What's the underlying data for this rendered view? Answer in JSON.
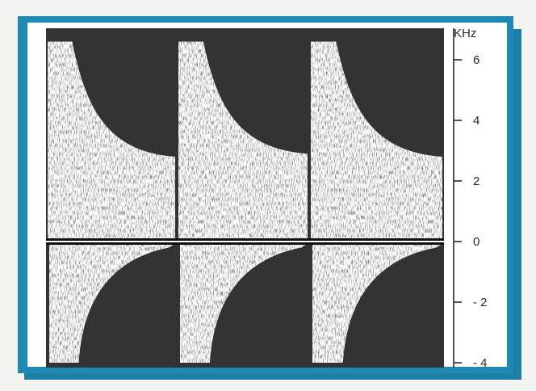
{
  "chart_data": {
    "type": "heatmap",
    "title": "",
    "xlabel": "",
    "ylabel": "KHz",
    "y_unit": "KHz",
    "ylim": [
      -4,
      6.6
    ],
    "y_ticks": [
      6,
      4,
      2,
      0,
      -2,
      -4
    ],
    "y_tick_labels": [
      "6",
      "4",
      "2",
      "0",
      "- 2",
      "- 4"
    ],
    "x_ticks": [],
    "grid": false,
    "legend": "none",
    "baseline_khz": 0,
    "cycles": [
      {
        "index": 1,
        "forward_peak_khz": 6.6,
        "forward_end_khz": 2.8,
        "reverse_peak_khz": -4.0,
        "reverse_end_khz": -0.2
      },
      {
        "index": 2,
        "forward_peak_khz": 6.6,
        "forward_end_khz": 2.9,
        "reverse_peak_khz": -4.0,
        "reverse_end_khz": -0.2
      },
      {
        "index": 3,
        "forward_peak_khz": 6.6,
        "forward_end_khz": 2.8,
        "reverse_peak_khz": -4.0,
        "reverse_end_khz": -0.2
      }
    ],
    "colors": {
      "background": "#333333",
      "signal": "#ffffff",
      "baseline": "#111111",
      "frame": "#1f89b3"
    }
  }
}
